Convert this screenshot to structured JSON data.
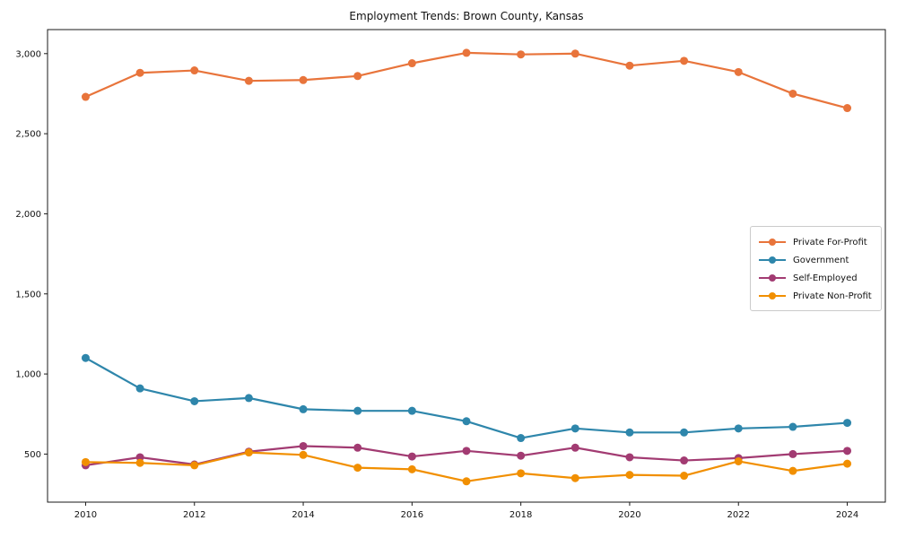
{
  "page": {
    "background": "#ffffff"
  },
  "chart_data": {
    "type": "line",
    "title": "Employment Trends: Brown County, Kansas",
    "xlabel": "",
    "ylabel": "",
    "grid": false,
    "legend_position": "middle-right",
    "xlim": [
      2009.3,
      2024.7
    ],
    "ylim": [
      200,
      3150
    ],
    "x": [
      2010,
      2011,
      2012,
      2013,
      2014,
      2015,
      2016,
      2017,
      2018,
      2019,
      2020,
      2021,
      2022,
      2023,
      2024
    ],
    "x_tick_values": [
      2010,
      2012,
      2014,
      2016,
      2018,
      2020,
      2022,
      2024
    ],
    "x_tick_labels": [
      "2010",
      "2012",
      "2014",
      "2016",
      "2018",
      "2020",
      "2022",
      "2024"
    ],
    "y_tick_values": [
      500,
      1000,
      1500,
      2000,
      2500,
      3000
    ],
    "y_tick_labels": [
      "500",
      "1,000",
      "1,500",
      "2,000",
      "2,500",
      "3,000"
    ],
    "series": [
      {
        "name": "Private For-Profit",
        "color": "#E8743B",
        "values": [
          2730,
          2880,
          2895,
          2830,
          2835,
          2860,
          2940,
          3005,
          2995,
          3000,
          2925,
          2955,
          2885,
          2750,
          2660
        ]
      },
      {
        "name": "Government",
        "color": "#2E86AB",
        "values": [
          1100,
          910,
          830,
          850,
          780,
          770,
          770,
          705,
          600,
          660,
          635,
          635,
          660,
          670,
          695
        ]
      },
      {
        "name": "Self-Employed",
        "color": "#A23B72",
        "values": [
          430,
          480,
          435,
          515,
          550,
          540,
          485,
          520,
          490,
          540,
          480,
          460,
          475,
          500,
          520
        ]
      },
      {
        "name": "Private Non-Profit",
        "color": "#F18F01",
        "values": [
          450,
          445,
          430,
          510,
          495,
          415,
          405,
          330,
          380,
          350,
          370,
          365,
          455,
          395,
          440
        ]
      }
    ]
  }
}
